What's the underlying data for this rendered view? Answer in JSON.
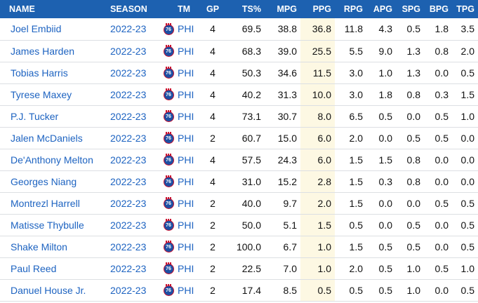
{
  "columns": {
    "name": "NAME",
    "season": "SEASON",
    "tm": "TM",
    "gp": "GP",
    "ts": "TS%",
    "mpg": "MPG",
    "ppg": "PPG",
    "rpg": "RPG",
    "apg": "APG",
    "spg": "SPG",
    "bpg": "BPG",
    "tpg": "TPG"
  },
  "accent": "#1d61b0",
  "highlight_column": "PPG",
  "team_logo_icon": "philadelphia-76ers-logo-icon",
  "rows": [
    {
      "name": "Joel Embiid",
      "season": "2022-23",
      "tm": "PHI",
      "gp": "4",
      "ts": "69.5",
      "mpg": "38.8",
      "ppg": "36.8",
      "rpg": "11.8",
      "apg": "4.3",
      "spg": "0.5",
      "bpg": "1.8",
      "tpg": "3.5"
    },
    {
      "name": "James Harden",
      "season": "2022-23",
      "tm": "PHI",
      "gp": "4",
      "ts": "68.3",
      "mpg": "39.0",
      "ppg": "25.5",
      "rpg": "5.5",
      "apg": "9.0",
      "spg": "1.3",
      "bpg": "0.8",
      "tpg": "2.0"
    },
    {
      "name": "Tobias Harris",
      "season": "2022-23",
      "tm": "PHI",
      "gp": "4",
      "ts": "50.3",
      "mpg": "34.6",
      "ppg": "11.5",
      "rpg": "3.0",
      "apg": "1.0",
      "spg": "1.3",
      "bpg": "0.0",
      "tpg": "0.5"
    },
    {
      "name": "Tyrese Maxey",
      "season": "2022-23",
      "tm": "PHI",
      "gp": "4",
      "ts": "40.2",
      "mpg": "31.3",
      "ppg": "10.0",
      "rpg": "3.0",
      "apg": "1.8",
      "spg": "0.8",
      "bpg": "0.3",
      "tpg": "1.5"
    },
    {
      "name": "P.J. Tucker",
      "season": "2022-23",
      "tm": "PHI",
      "gp": "4",
      "ts": "73.1",
      "mpg": "30.7",
      "ppg": "8.0",
      "rpg": "6.5",
      "apg": "0.5",
      "spg": "0.0",
      "bpg": "0.5",
      "tpg": "1.0"
    },
    {
      "name": "Jalen McDaniels",
      "season": "2022-23",
      "tm": "PHI",
      "gp": "2",
      "ts": "60.7",
      "mpg": "15.0",
      "ppg": "6.0",
      "rpg": "2.0",
      "apg": "0.0",
      "spg": "0.5",
      "bpg": "0.5",
      "tpg": "0.0"
    },
    {
      "name": "De'Anthony Melton",
      "season": "2022-23",
      "tm": "PHI",
      "gp": "4",
      "ts": "57.5",
      "mpg": "24.3",
      "ppg": "6.0",
      "rpg": "1.5",
      "apg": "1.5",
      "spg": "0.8",
      "bpg": "0.0",
      "tpg": "0.0"
    },
    {
      "name": "Georges Niang",
      "season": "2022-23",
      "tm": "PHI",
      "gp": "4",
      "ts": "31.0",
      "mpg": "15.2",
      "ppg": "2.8",
      "rpg": "1.5",
      "apg": "0.3",
      "spg": "0.8",
      "bpg": "0.0",
      "tpg": "0.0"
    },
    {
      "name": "Montrezl Harrell",
      "season": "2022-23",
      "tm": "PHI",
      "gp": "2",
      "ts": "40.0",
      "mpg": "9.7",
      "ppg": "2.0",
      "rpg": "1.5",
      "apg": "0.0",
      "spg": "0.0",
      "bpg": "0.5",
      "tpg": "0.5"
    },
    {
      "name": "Matisse Thybulle",
      "season": "2022-23",
      "tm": "PHI",
      "gp": "2",
      "ts": "50.0",
      "mpg": "5.1",
      "ppg": "1.5",
      "rpg": "0.5",
      "apg": "0.0",
      "spg": "0.5",
      "bpg": "0.0",
      "tpg": "0.5"
    },
    {
      "name": "Shake Milton",
      "season": "2022-23",
      "tm": "PHI",
      "gp": "2",
      "ts": "100.0",
      "mpg": "6.7",
      "ppg": "1.0",
      "rpg": "1.5",
      "apg": "0.5",
      "spg": "0.5",
      "bpg": "0.0",
      "tpg": "0.5"
    },
    {
      "name": "Paul Reed",
      "season": "2022-23",
      "tm": "PHI",
      "gp": "2",
      "ts": "22.5",
      "mpg": "7.0",
      "ppg": "1.0",
      "rpg": "2.0",
      "apg": "0.5",
      "spg": "1.0",
      "bpg": "0.5",
      "tpg": "1.0"
    },
    {
      "name": "Danuel House Jr.",
      "season": "2022-23",
      "tm": "PHI",
      "gp": "2",
      "ts": "17.4",
      "mpg": "8.5",
      "ppg": "0.5",
      "rpg": "0.5",
      "apg": "0.5",
      "spg": "1.0",
      "bpg": "0.0",
      "tpg": "0.5"
    }
  ]
}
